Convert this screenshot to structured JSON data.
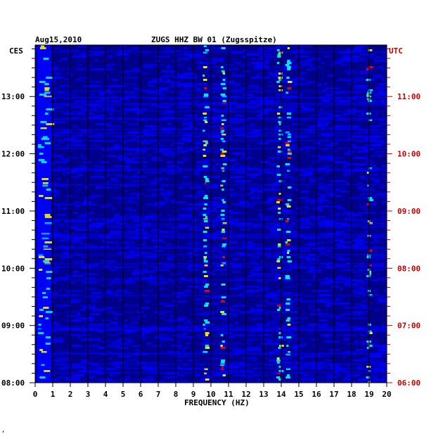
{
  "header": {
    "date": "Aug15,2010",
    "station": "ZUGS HHZ BW 01 (Zugsspitze)",
    "left_tz": "CES",
    "right_tz": "UTC"
  },
  "footer_mark": "‚",
  "chart_data": {
    "type": "heatmap",
    "title": "ZUGS HHZ BW 01 (Zugsspitze)",
    "xlabel": "FREQUENCY (HZ)",
    "xlim": [
      0,
      20
    ],
    "x_ticks": [
      "0",
      "1",
      "2",
      "3",
      "4",
      "5",
      "6",
      "7",
      "8",
      "9",
      "10",
      "11",
      "12",
      "13",
      "14",
      "15",
      "16",
      "17",
      "18",
      "19",
      "20"
    ],
    "y_axis_left": {
      "label": "CES",
      "ticks": [
        "13:00",
        "12:00",
        "11:00",
        "10:00",
        "09:00",
        "08:00"
      ]
    },
    "y_axis_right": {
      "label": "UTC",
      "color": "#cc0000",
      "ticks": [
        "11:00",
        "10:00",
        "09:00",
        "08:00",
        "07:00",
        "06:00"
      ]
    },
    "time_range_ces_hours": [
      8.0,
      13.9
    ],
    "colormap": [
      "#00008b",
      "#0000ff",
      "#00ffff",
      "#ffff00",
      "#ff0000"
    ],
    "background_color": "#00008b",
    "dominant_bands_hz": [
      0.4,
      9.6,
      10.6,
      13.8,
      14.3,
      18.9
    ],
    "grid": true
  }
}
